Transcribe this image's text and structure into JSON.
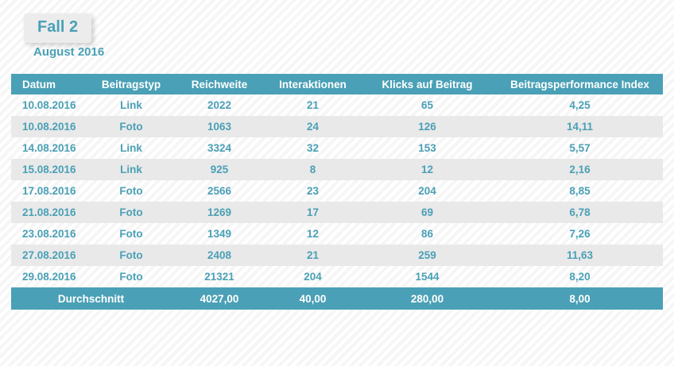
{
  "header": {
    "badge": "Fall 2",
    "subtitle": "August 2016"
  },
  "colors": {
    "accent": "#4AA0B6",
    "alt_row_bg": "#E9E9E9",
    "badge_bg": "#ECECEC",
    "header_text": "#FFFFFF"
  },
  "table": {
    "columns": [
      "Datum",
      "Beitragstyp",
      "Reichweite",
      "Interaktionen",
      "Klicks auf Beitrag",
      "Beitragsperformance Index"
    ],
    "rows": [
      [
        "10.08.2016",
        "Link",
        "2022",
        "21",
        "65",
        "4,25"
      ],
      [
        "10.08.2016",
        "Foto",
        "1063",
        "24",
        "126",
        "14,11"
      ],
      [
        "14.08.2016",
        "Link",
        "3324",
        "32",
        "153",
        "5,57"
      ],
      [
        "15.08.2016",
        "Link",
        "925",
        "8",
        "12",
        "2,16"
      ],
      [
        "17.08.2016",
        "Foto",
        "2566",
        "23",
        "204",
        "8,85"
      ],
      [
        "21.08.2016",
        "Foto",
        "1269",
        "17",
        "69",
        "6,78"
      ],
      [
        "23.08.2016",
        "Foto",
        "1349",
        "12",
        "86",
        "7,26"
      ],
      [
        "27.08.2016",
        "Foto",
        "2408",
        "21",
        "259",
        "11,63"
      ],
      [
        "29.08.2016",
        "Foto",
        "21321",
        "204",
        "1544",
        "8,20"
      ]
    ],
    "footer": {
      "label": "Durchschnitt",
      "values": [
        "4027,00",
        "40,00",
        "280,00",
        "8,00"
      ]
    }
  },
  "chart_data": {
    "type": "table",
    "title": "Fall 2",
    "subtitle": "August 2016",
    "columns": [
      "Datum",
      "Beitragstyp",
      "Reichweite",
      "Interaktionen",
      "Klicks auf Beitrag",
      "Beitragsperformance Index"
    ],
    "rows": [
      [
        "10.08.2016",
        "Link",
        2022,
        21,
        65,
        4.25
      ],
      [
        "10.08.2016",
        "Foto",
        1063,
        24,
        126,
        14.11
      ],
      [
        "14.08.2016",
        "Link",
        3324,
        32,
        153,
        5.57
      ],
      [
        "15.08.2016",
        "Link",
        925,
        8,
        12,
        2.16
      ],
      [
        "17.08.2016",
        "Foto",
        2566,
        23,
        204,
        8.85
      ],
      [
        "21.08.2016",
        "Foto",
        1269,
        17,
        69,
        6.78
      ],
      [
        "23.08.2016",
        "Foto",
        1349,
        12,
        86,
        7.26
      ],
      [
        "27.08.2016",
        "Foto",
        2408,
        21,
        259,
        11.63
      ],
      [
        "29.08.2016",
        "Foto",
        21321,
        204,
        1544,
        8.2
      ]
    ],
    "averages_row": {
      "label": "Durchschnitt",
      "Reichweite": 4027.0,
      "Interaktionen": 40.0,
      "Klicks auf Beitrag": 280.0,
      "Beitragsperformance Index": 8.0
    }
  }
}
